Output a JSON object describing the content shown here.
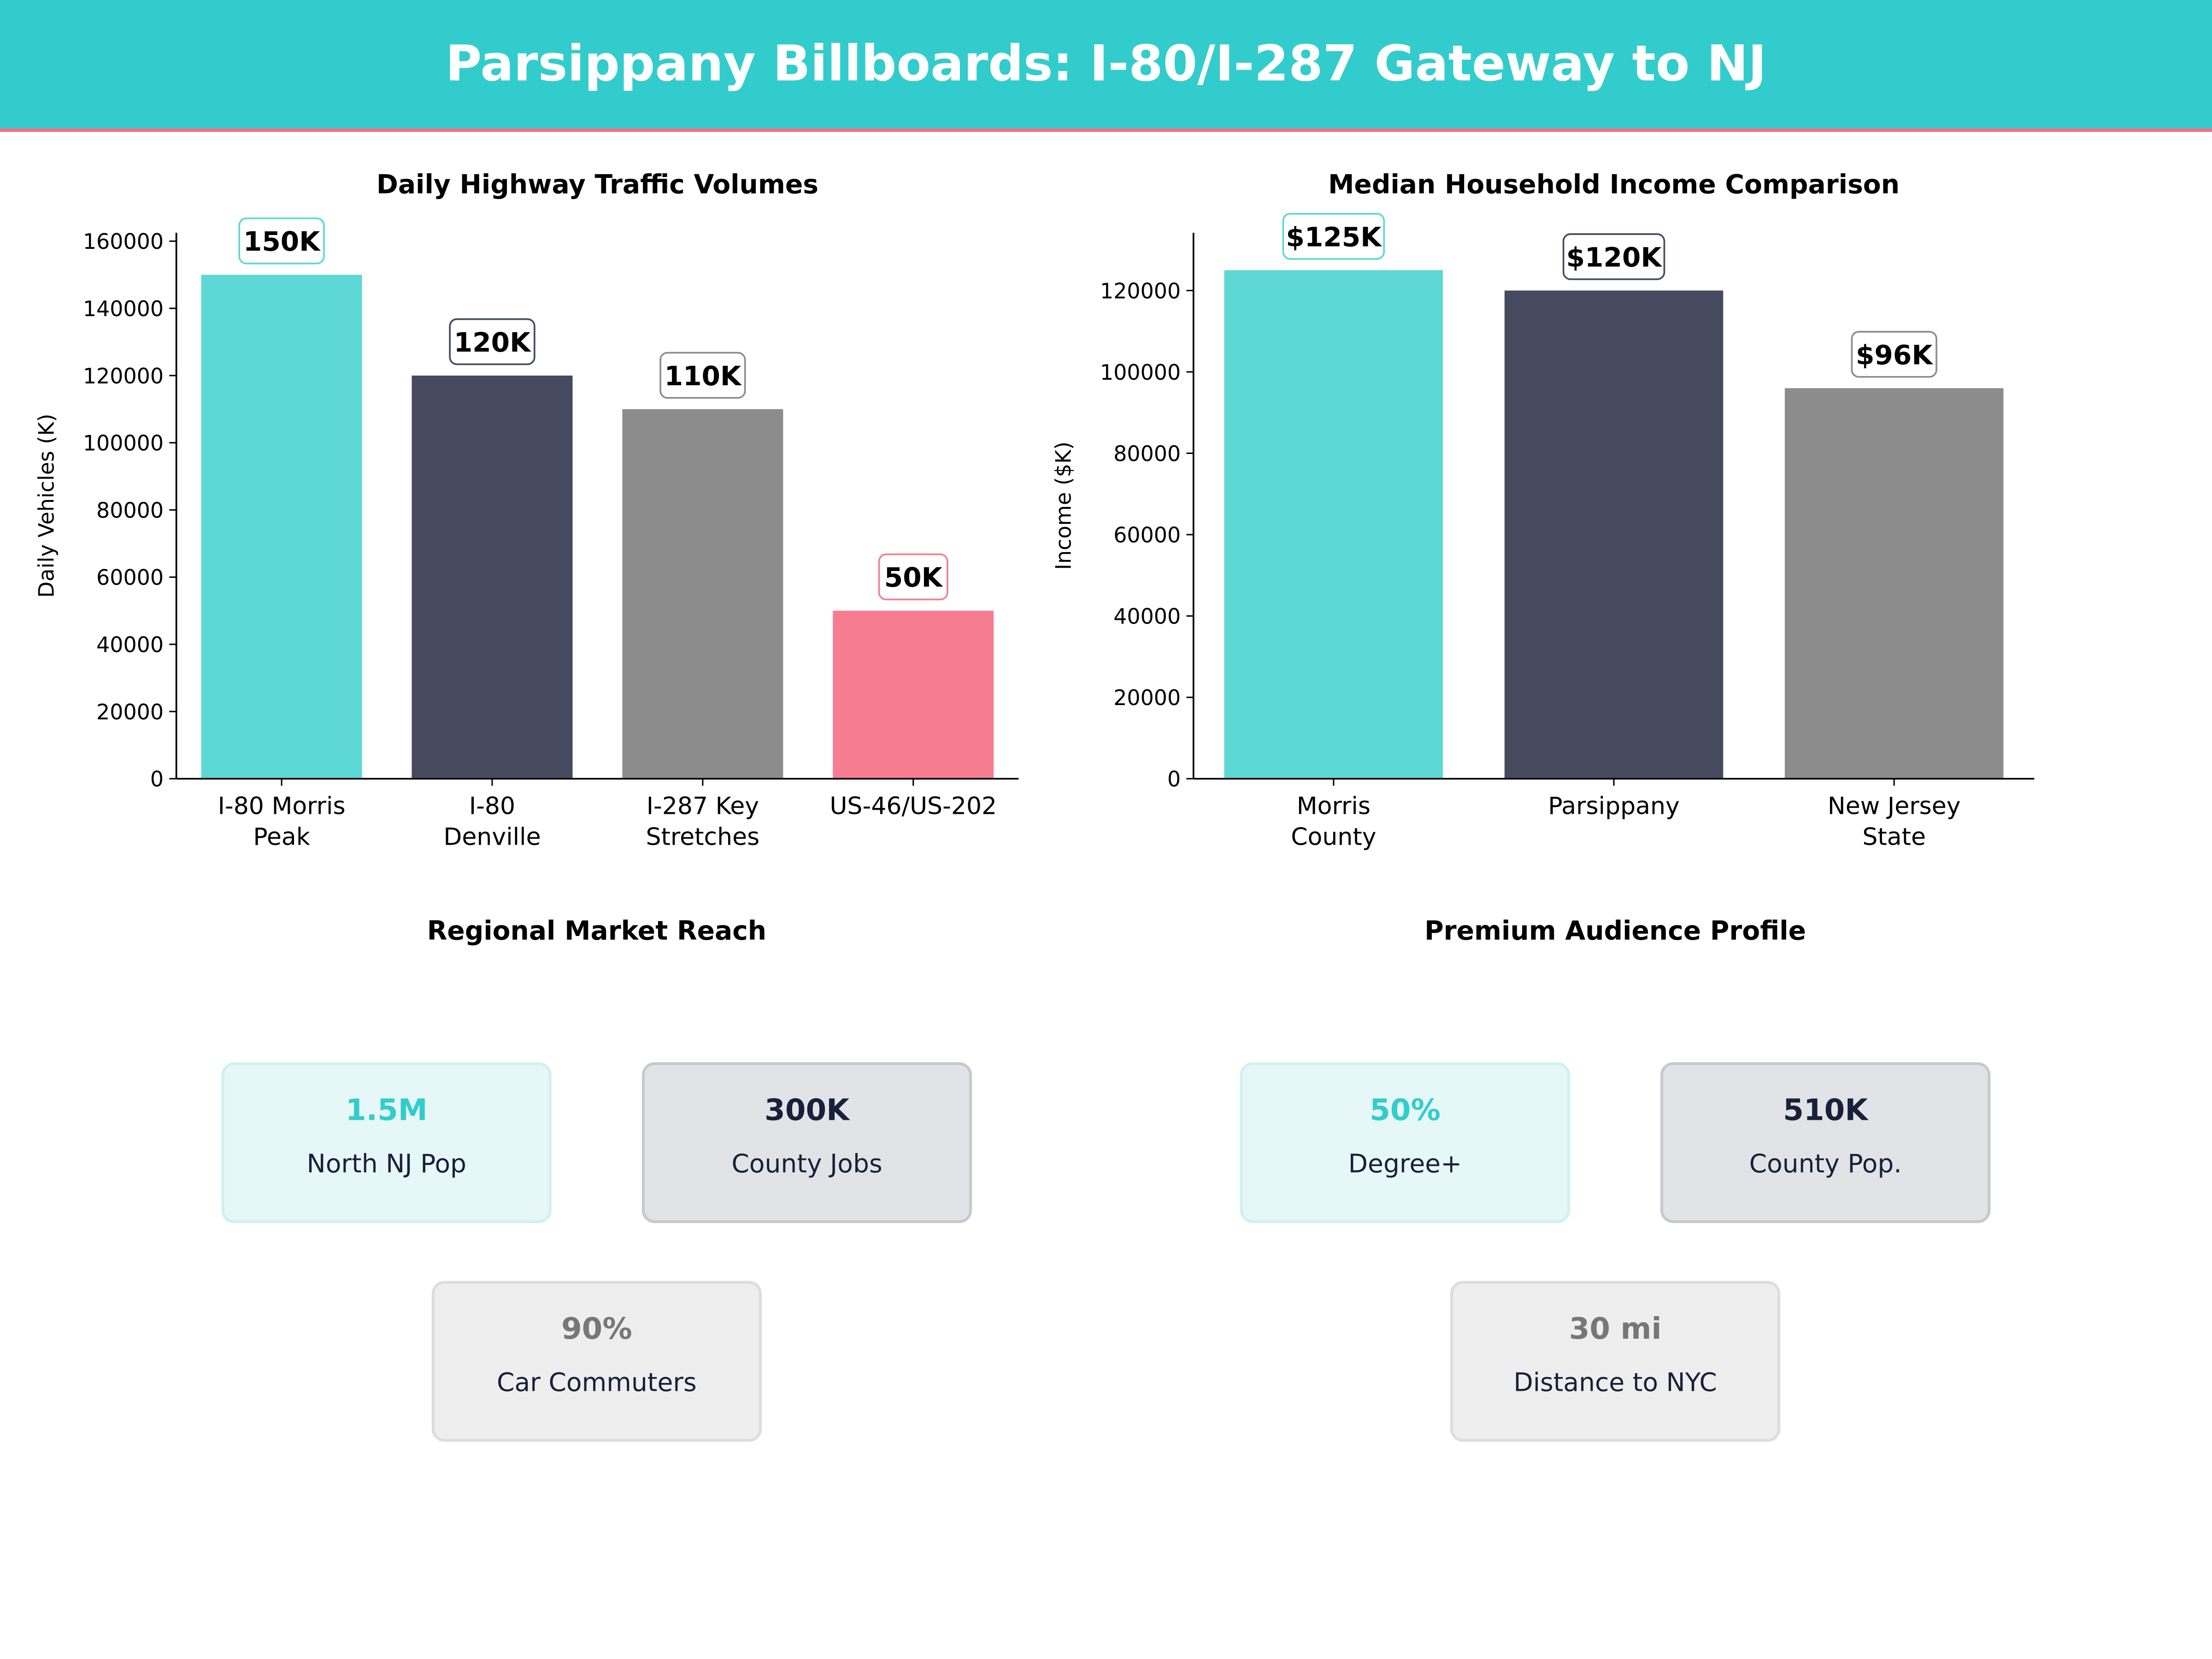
{
  "header": {
    "title": "Parsippany Billboards: I-80/I-287 Gateway to NJ"
  },
  "colors": {
    "header_bg": "#33CCCC",
    "header_rule": "#F06E84",
    "teal": "#5DD8D4",
    "navy": "#454A5F",
    "gray": "#8C8C8C",
    "pink": "#F67D91"
  },
  "chart_data": [
    {
      "type": "bar",
      "title": "Daily Highway Traffic Volumes",
      "xlabel": "",
      "ylabel": "Daily Vehicles (K)",
      "categories": [
        "I-80 Morris\nPeak",
        "I-80\nDenville",
        "I-287 Key\nStretches",
        "US-46/US-202"
      ],
      "values": [
        150000,
        120000,
        110000,
        50000
      ],
      "data_labels": [
        "150K",
        "120K",
        "110K",
        "50K"
      ],
      "bar_colors": [
        "#5DD8D4",
        "#454A5F",
        "#8C8C8C",
        "#F67D91"
      ],
      "label_borders": [
        "#5DD8D4",
        "#454A5F",
        "#8C8C8C",
        "#F67D91"
      ],
      "ylim": [
        0,
        162500
      ],
      "yticks": [
        0,
        20000,
        40000,
        60000,
        80000,
        100000,
        120000,
        140000,
        160000
      ],
      "grid": false
    },
    {
      "type": "bar",
      "title": "Median Household Income Comparison",
      "xlabel": "",
      "ylabel": "Income ($K)",
      "categories": [
        "Morris\nCounty",
        "Parsippany",
        "New Jersey\nState"
      ],
      "values": [
        125000,
        120000,
        96000
      ],
      "data_labels": [
        "$125K",
        "$120K",
        "$96K"
      ],
      "bar_colors": [
        "#5DD8D4",
        "#454A5F",
        "#8C8C8C"
      ],
      "label_borders": [
        "#5DD8D4",
        "#454A5F",
        "#8C8C8C"
      ],
      "ylim": [
        0,
        134200
      ],
      "yticks": [
        0,
        20000,
        40000,
        60000,
        80000,
        100000,
        120000
      ],
      "grid": false
    }
  ],
  "panels": [
    {
      "title": "Regional Market Reach",
      "cards": [
        {
          "value": "1.5M",
          "label": "North NJ Pop",
          "value_color": "#33CCCC",
          "bg": "#E6F7F7",
          "border": "#CFF1F1"
        },
        {
          "value": "300K",
          "label": "County Jobs",
          "value_color": "#1A1F3A",
          "bg": "#E2E3E7",
          "border": "#C8C9CE"
        },
        {
          "value": "90%",
          "label": "Car Commuters",
          "value_color": "#777777",
          "bg": "#EEEEEE",
          "border": "#DDDDDD"
        }
      ]
    },
    {
      "title": "Premium Audience Profile",
      "cards": [
        {
          "value": "50%",
          "label": "Degree+",
          "value_color": "#33CCCC",
          "bg": "#E6F7F7",
          "border": "#CFF1F1"
        },
        {
          "value": "510K",
          "label": "County Pop.",
          "value_color": "#1A1F3A",
          "bg": "#E2E3E7",
          "border": "#C8C9CE"
        },
        {
          "value": "30 mi",
          "label": "Distance to NYC",
          "value_color": "#777777",
          "bg": "#EEEEEE",
          "border": "#DDDDDD"
        }
      ]
    }
  ]
}
